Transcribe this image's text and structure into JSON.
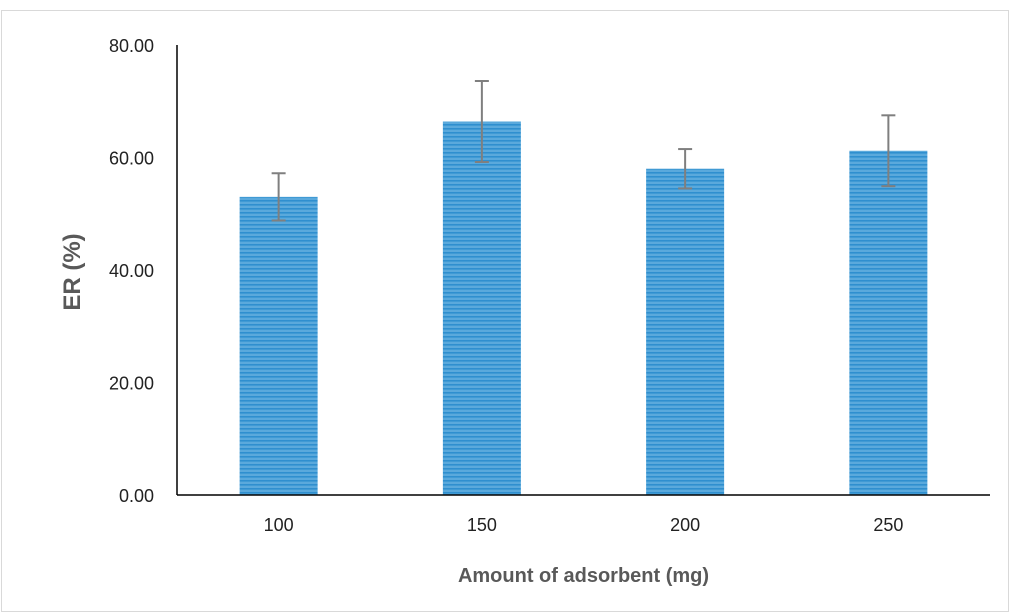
{
  "chart_data": {
    "type": "bar",
    "title": "",
    "xlabel": "Amount of adsorbent (mg)",
    "ylabel": "ER (%)",
    "categories": [
      "100",
      "150",
      "200",
      "250"
    ],
    "values": [
      53.0,
      66.4,
      58.0,
      61.2
    ],
    "error": [
      4.2,
      7.2,
      3.5,
      6.3
    ],
    "ylim": [
      0,
      80
    ],
    "y_ticks": [
      "0.00",
      "20.00",
      "40.00",
      "60.00",
      "80.00"
    ],
    "grid": false,
    "legend": "none",
    "colors": {
      "bar": "#5aa9dc",
      "bar_stripe": "#2f8fcf",
      "error_bar": "#7f7f7f",
      "axis": "#000000"
    }
  }
}
